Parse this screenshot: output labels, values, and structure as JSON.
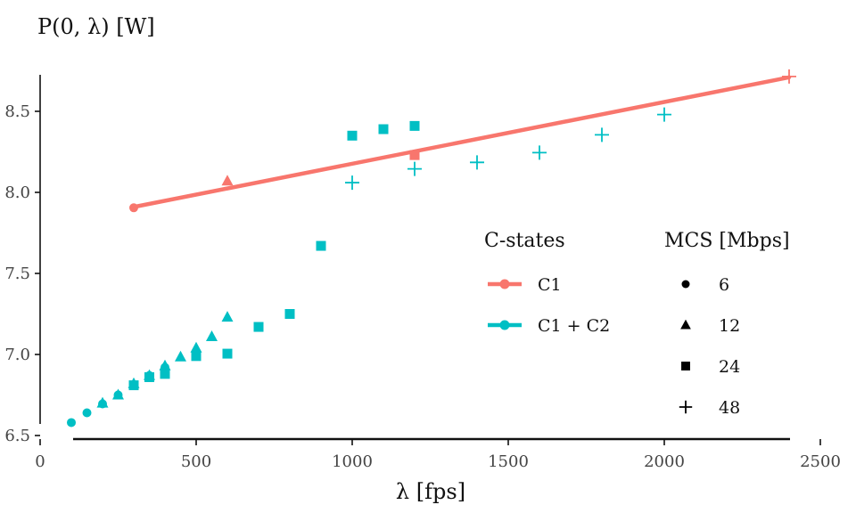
{
  "chart_data": {
    "type": "scatter",
    "ylabel": "P(0, λ) [W]",
    "xlabel": "λ [fps]",
    "xlim": [
      0,
      2500
    ],
    "ylim": [
      6.5,
      8.75
    ],
    "x_ticks": [
      0,
      500,
      1000,
      1500,
      2000,
      2500
    ],
    "y_ticks": [
      6.5,
      7.0,
      7.5,
      8.0,
      8.5
    ],
    "grid": false,
    "legend_position": "right",
    "legend": {
      "color_title": "C-states",
      "color_items": [
        {
          "label": "C1",
          "color": "#F8766D"
        },
        {
          "label": "C1 + C2",
          "color": "#00BFC4"
        }
      ],
      "shape_title": "MCS [Mbps]",
      "shape_items": [
        {
          "label": "6",
          "shape": "circle"
        },
        {
          "label": "12",
          "shape": "triangle"
        },
        {
          "label": "24",
          "shape": "square"
        },
        {
          "label": "48",
          "shape": "plus"
        }
      ]
    },
    "series": [
      {
        "name": "C1",
        "color": "#F8766D",
        "fit_line": {
          "x": [
            300,
            2400
          ],
          "y": [
            7.91,
            8.71
          ]
        },
        "points": [
          {
            "x": 300,
            "y": 7.905,
            "shape": "circle"
          },
          {
            "x": 600,
            "y": 8.07,
            "shape": "triangle"
          },
          {
            "x": 1200,
            "y": 8.23,
            "shape": "square"
          },
          {
            "x": 2400,
            "y": 8.715,
            "shape": "plus"
          }
        ]
      },
      {
        "name": "C1 + C2",
        "color": "#00BFC4",
        "points": [
          {
            "x": 100,
            "y": 6.58,
            "shape": "circle"
          },
          {
            "x": 150,
            "y": 6.64,
            "shape": "circle"
          },
          {
            "x": 200,
            "y": 6.695,
            "shape": "circle"
          },
          {
            "x": 250,
            "y": 6.75,
            "shape": "circle"
          },
          {
            "x": 300,
            "y": 6.81,
            "shape": "circle"
          },
          {
            "x": 350,
            "y": 6.87,
            "shape": "circle"
          },
          {
            "x": 400,
            "y": 6.92,
            "shape": "circle"
          },
          {
            "x": 200,
            "y": 6.7,
            "shape": "triangle"
          },
          {
            "x": 250,
            "y": 6.75,
            "shape": "triangle"
          },
          {
            "x": 300,
            "y": 6.82,
            "shape": "triangle"
          },
          {
            "x": 350,
            "y": 6.87,
            "shape": "triangle"
          },
          {
            "x": 400,
            "y": 6.93,
            "shape": "triangle"
          },
          {
            "x": 450,
            "y": 6.985,
            "shape": "triangle"
          },
          {
            "x": 500,
            "y": 7.04,
            "shape": "triangle"
          },
          {
            "x": 550,
            "y": 7.11,
            "shape": "triangle"
          },
          {
            "x": 600,
            "y": 7.23,
            "shape": "triangle"
          },
          {
            "x": 300,
            "y": 6.81,
            "shape": "square"
          },
          {
            "x": 350,
            "y": 6.86,
            "shape": "square"
          },
          {
            "x": 400,
            "y": 6.88,
            "shape": "square"
          },
          {
            "x": 500,
            "y": 6.99,
            "shape": "square"
          },
          {
            "x": 600,
            "y": 7.005,
            "shape": "square"
          },
          {
            "x": 700,
            "y": 7.17,
            "shape": "square"
          },
          {
            "x": 800,
            "y": 7.25,
            "shape": "square"
          },
          {
            "x": 900,
            "y": 7.67,
            "shape": "square"
          },
          {
            "x": 1000,
            "y": 8.35,
            "shape": "square"
          },
          {
            "x": 1100,
            "y": 8.39,
            "shape": "square"
          },
          {
            "x": 1200,
            "y": 8.41,
            "shape": "square"
          },
          {
            "x": 1000,
            "y": 8.06,
            "shape": "plus"
          },
          {
            "x": 1200,
            "y": 8.145,
            "shape": "plus"
          },
          {
            "x": 1400,
            "y": 8.185,
            "shape": "plus"
          },
          {
            "x": 1600,
            "y": 8.245,
            "shape": "plus"
          },
          {
            "x": 1800,
            "y": 8.355,
            "shape": "plus"
          },
          {
            "x": 2000,
            "y": 8.48,
            "shape": "plus"
          }
        ]
      }
    ]
  }
}
